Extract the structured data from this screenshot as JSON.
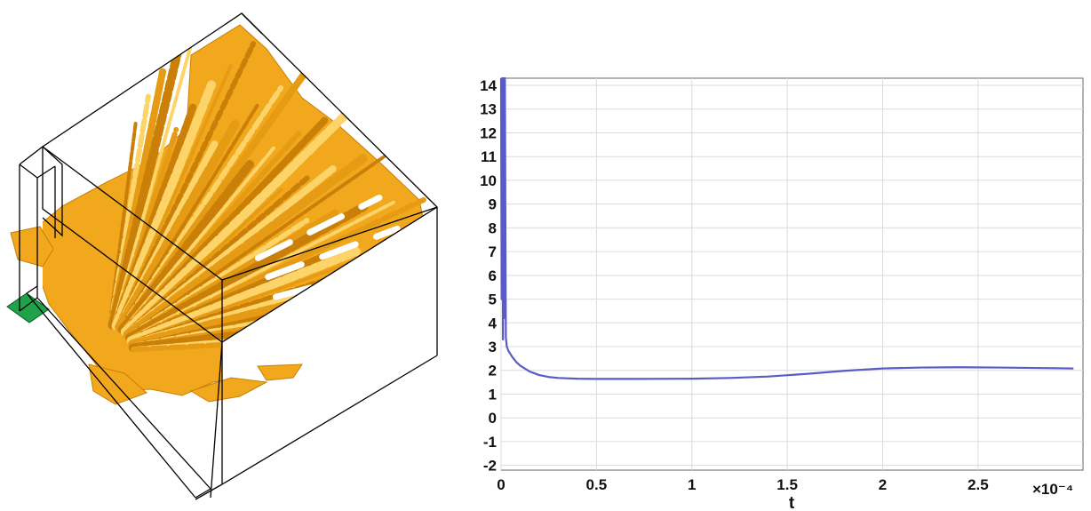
{
  "colors": {
    "isosurface": "#f2a81c",
    "isosurface_shade": "#c97f08",
    "isosurface_light": "#fcd46a",
    "source_face": "#1fa24a",
    "box_edges": "#000000",
    "series_line": "#5a5ac8",
    "grid": "#dcdcdc"
  },
  "chart_data": {
    "type": "line",
    "xlabel": "t",
    "x_multiplier": "×10⁻⁴",
    "xlim": [
      0,
      0.000305
    ],
    "ylim": [
      -2.2,
      14.3
    ],
    "x_ticks": [
      0,
      5e-05,
      0.0001,
      0.00015,
      0.0002,
      0.00025
    ],
    "x_tick_labels": [
      "0",
      "0.5",
      "1",
      "1.5",
      "2",
      "2.5"
    ],
    "y_ticks": [
      -2,
      -1,
      0,
      1,
      2,
      3,
      4,
      5,
      6,
      7,
      8,
      9,
      10,
      11,
      12,
      13,
      14
    ],
    "y_tick_labels": [
      "-2",
      "-1",
      "0",
      "1",
      "2",
      "3",
      "4",
      "5",
      "6",
      "7",
      "8",
      "9",
      "10",
      "11",
      "12",
      "13",
      "14"
    ],
    "grid": true,
    "series": [
      {
        "x": [
          0,
          3e-07,
          6e-07,
          1e-06,
          1.3e-06,
          1.6e-06,
          2e-06,
          2.5e-06,
          3e-06,
          4e-06,
          6e-06,
          8e-06,
          1e-05,
          1.5e-05,
          2e-05,
          2.5e-05,
          3e-05,
          4e-05,
          5e-05,
          7e-05,
          0.0001,
          0.00012,
          0.00014,
          0.00016,
          0.00018,
          0.0002,
          0.00022,
          0.00024,
          0.00026,
          0.00028,
          0.0003
        ],
        "y": [
          14.3,
          5.0,
          14.3,
          3.3,
          14.3,
          4.2,
          14.3,
          3.4,
          3.0,
          2.8,
          2.55,
          2.35,
          2.2,
          1.95,
          1.8,
          1.72,
          1.68,
          1.65,
          1.64,
          1.64,
          1.65,
          1.68,
          1.74,
          1.85,
          1.98,
          2.08,
          2.12,
          2.13,
          2.12,
          2.1,
          2.08
        ]
      }
    ]
  }
}
